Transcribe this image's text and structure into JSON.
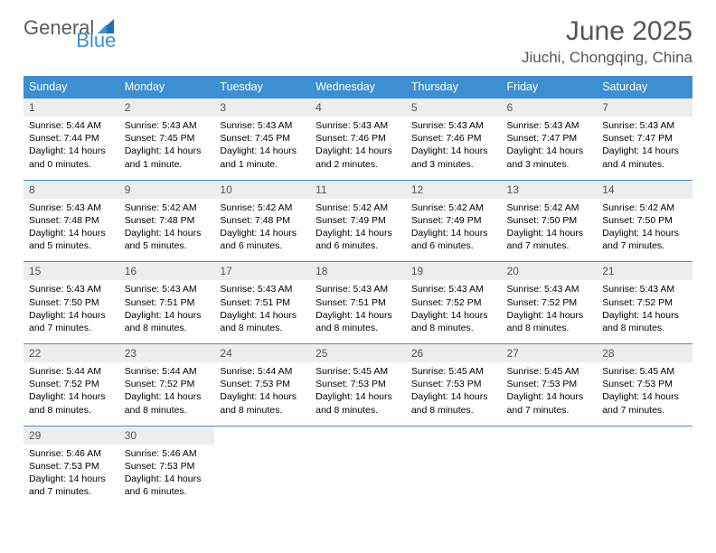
{
  "logo": {
    "word1": "General",
    "word2": "Blue"
  },
  "title": "June 2025",
  "location": "Jiuchi, Chongqing, China",
  "colors": {
    "header_bg": "#3d8fd1",
    "header_text": "#ffffff",
    "daynum_bg": "#ededed",
    "daynum_text": "#555555",
    "rule": "#3d8fd1",
    "body_text": "#000000",
    "title_text": "#555555"
  },
  "layout": {
    "columns": 7,
    "rows": 5,
    "font_family": "Arial",
    "daynum_fontsize": 12,
    "daydata_fontsize": 10.5,
    "header_fontsize": 12.5,
    "title_fontsize": 30,
    "location_fontsize": 17
  },
  "day_headers": [
    "Sunday",
    "Monday",
    "Tuesday",
    "Wednesday",
    "Thursday",
    "Friday",
    "Saturday"
  ],
  "days": [
    {
      "n": 1,
      "sr": "5:44 AM",
      "ss": "7:44 PM",
      "dl": "14 hours and 0 minutes."
    },
    {
      "n": 2,
      "sr": "5:43 AM",
      "ss": "7:45 PM",
      "dl": "14 hours and 1 minute."
    },
    {
      "n": 3,
      "sr": "5:43 AM",
      "ss": "7:45 PM",
      "dl": "14 hours and 1 minute."
    },
    {
      "n": 4,
      "sr": "5:43 AM",
      "ss": "7:46 PM",
      "dl": "14 hours and 2 minutes."
    },
    {
      "n": 5,
      "sr": "5:43 AM",
      "ss": "7:46 PM",
      "dl": "14 hours and 3 minutes."
    },
    {
      "n": 6,
      "sr": "5:43 AM",
      "ss": "7:47 PM",
      "dl": "14 hours and 3 minutes."
    },
    {
      "n": 7,
      "sr": "5:43 AM",
      "ss": "7:47 PM",
      "dl": "14 hours and 4 minutes."
    },
    {
      "n": 8,
      "sr": "5:43 AM",
      "ss": "7:48 PM",
      "dl": "14 hours and 5 minutes."
    },
    {
      "n": 9,
      "sr": "5:42 AM",
      "ss": "7:48 PM",
      "dl": "14 hours and 5 minutes."
    },
    {
      "n": 10,
      "sr": "5:42 AM",
      "ss": "7:48 PM",
      "dl": "14 hours and 6 minutes."
    },
    {
      "n": 11,
      "sr": "5:42 AM",
      "ss": "7:49 PM",
      "dl": "14 hours and 6 minutes."
    },
    {
      "n": 12,
      "sr": "5:42 AM",
      "ss": "7:49 PM",
      "dl": "14 hours and 6 minutes."
    },
    {
      "n": 13,
      "sr": "5:42 AM",
      "ss": "7:50 PM",
      "dl": "14 hours and 7 minutes."
    },
    {
      "n": 14,
      "sr": "5:42 AM",
      "ss": "7:50 PM",
      "dl": "14 hours and 7 minutes."
    },
    {
      "n": 15,
      "sr": "5:43 AM",
      "ss": "7:50 PM",
      "dl": "14 hours and 7 minutes."
    },
    {
      "n": 16,
      "sr": "5:43 AM",
      "ss": "7:51 PM",
      "dl": "14 hours and 8 minutes."
    },
    {
      "n": 17,
      "sr": "5:43 AM",
      "ss": "7:51 PM",
      "dl": "14 hours and 8 minutes."
    },
    {
      "n": 18,
      "sr": "5:43 AM",
      "ss": "7:51 PM",
      "dl": "14 hours and 8 minutes."
    },
    {
      "n": 19,
      "sr": "5:43 AM",
      "ss": "7:52 PM",
      "dl": "14 hours and 8 minutes."
    },
    {
      "n": 20,
      "sr": "5:43 AM",
      "ss": "7:52 PM",
      "dl": "14 hours and 8 minutes."
    },
    {
      "n": 21,
      "sr": "5:43 AM",
      "ss": "7:52 PM",
      "dl": "14 hours and 8 minutes."
    },
    {
      "n": 22,
      "sr": "5:44 AM",
      "ss": "7:52 PM",
      "dl": "14 hours and 8 minutes."
    },
    {
      "n": 23,
      "sr": "5:44 AM",
      "ss": "7:52 PM",
      "dl": "14 hours and 8 minutes."
    },
    {
      "n": 24,
      "sr": "5:44 AM",
      "ss": "7:53 PM",
      "dl": "14 hours and 8 minutes."
    },
    {
      "n": 25,
      "sr": "5:45 AM",
      "ss": "7:53 PM",
      "dl": "14 hours and 8 minutes."
    },
    {
      "n": 26,
      "sr": "5:45 AM",
      "ss": "7:53 PM",
      "dl": "14 hours and 8 minutes."
    },
    {
      "n": 27,
      "sr": "5:45 AM",
      "ss": "7:53 PM",
      "dl": "14 hours and 7 minutes."
    },
    {
      "n": 28,
      "sr": "5:45 AM",
      "ss": "7:53 PM",
      "dl": "14 hours and 7 minutes."
    },
    {
      "n": 29,
      "sr": "5:46 AM",
      "ss": "7:53 PM",
      "dl": "14 hours and 7 minutes."
    },
    {
      "n": 30,
      "sr": "5:46 AM",
      "ss": "7:53 PM",
      "dl": "14 hours and 6 minutes."
    }
  ],
  "labels": {
    "sunrise": "Sunrise:",
    "sunset": "Sunset:",
    "daylight": "Daylight:"
  }
}
